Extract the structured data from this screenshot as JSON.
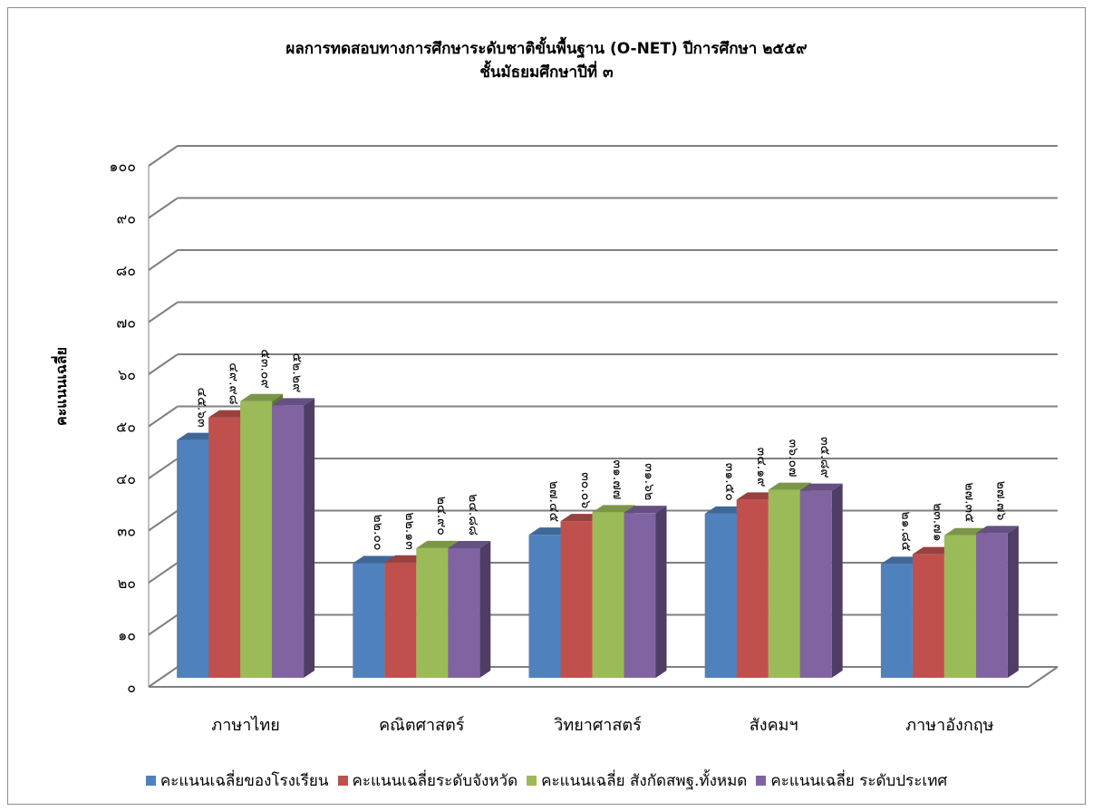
{
  "chart_data": {
    "type": "bar",
    "title": "ผลการทดสอบทางการศึกษาระดับชาติขั้นพื้นฐาน (O-NET) ปีการศึกษา ๒๕๕๙",
    "subtitle": "ชั้นมัธยมศึกษาปีที่ ๓",
    "xlabel": "",
    "ylabel": "คะแนนเฉลี่ย",
    "ylim": [
      0,
      100
    ],
    "yticks": [
      "๐",
      "๑๐",
      "๒๐",
      "๓๐",
      "๔๐",
      "๕๐",
      "๖๐",
      "๗๐",
      "๘๐",
      "๙๐",
      "๑๐๐"
    ],
    "grid": true,
    "legend_position": "bottom",
    "categories": [
      "ภาษาไทย",
      "คณิตศาสตร์",
      "วิทยาศาสตร์",
      "สังคมฯ",
      "ภาษาอังกฤษ"
    ],
    "series": [
      {
        "name": "คะแนนเฉลี่ยของโรงเรียน",
        "color": "#4F81BD",
        "values": [
          45.63,
          22.0,
          27.45,
          31.5,
          21.85
        ],
        "labels": [
          "๔๕.๖๓",
          "๒๒.๐๐",
          "๒๗.๔๕",
          "๓๑.๕๐",
          "๒๑.๘๕"
        ]
      },
      {
        "name": "คะแนนเฉลี่ยระดับจังหวัด",
        "color": "#C0504D",
        "values": [
          49.98,
          22.13,
          30.06,
          34.19,
          23.71
        ],
        "labels": [
          "๔๙.๙๘",
          "๒๒.๑๓",
          "๓๐.๐๖",
          "๓๔.๑๙",
          "๒๓.๗๑"
        ]
      },
      {
        "name": "คะแนนเฉลี่ย  สังกัดสพฐ.ทั้งหมด",
        "color": "#9BBB59",
        "values": [
          53.09,
          24.9,
          31.77,
          36.07,
          27.35
        ],
        "labels": [
          "๕๓.๐๙",
          "๒๔.๙๐",
          "๓๑.๗๗",
          "๓๖.๐๗",
          "๒๗.๓๕"
        ]
      },
      {
        "name": "คะแนนเฉลี่ย ระดับประเทศ",
        "color": "#8064A2",
        "values": [
          52.29,
          24.88,
          31.62,
          35.89,
          27.76
        ],
        "labels": [
          "๕๒.๒๙",
          "๒๔.๘๘",
          "๓๑.๖๒",
          "๓๕.๘๙",
          "๒๗.๗๖"
        ]
      }
    ]
  }
}
